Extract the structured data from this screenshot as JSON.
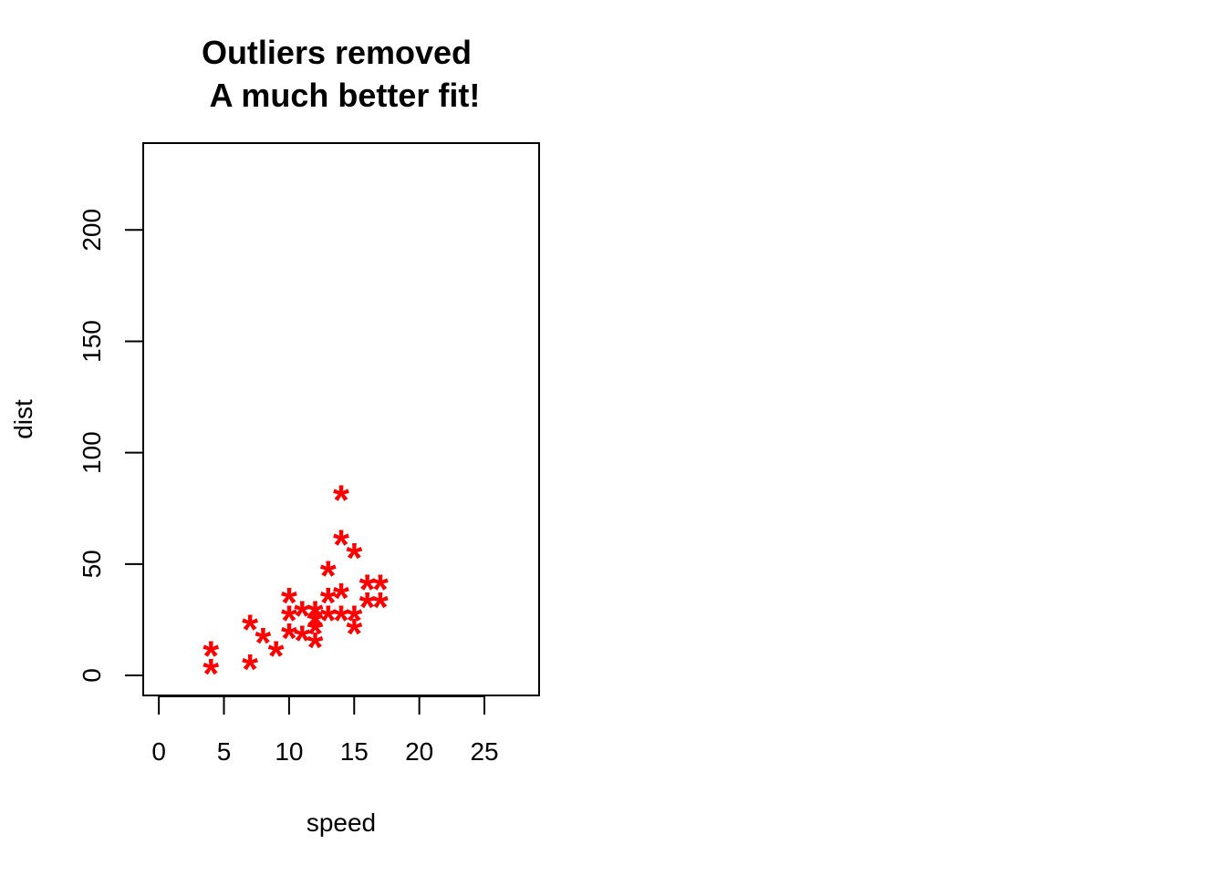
{
  "chart_data": {
    "type": "scatter",
    "title": [
      "Outliers removed",
      "A much better fit!"
    ],
    "xlabel": "speed",
    "ylabel": "dist",
    "xlim": [
      -1.2,
      29.2
    ],
    "ylim": [
      -9,
      239
    ],
    "xticks": [
      0,
      5,
      10,
      15,
      20,
      25
    ],
    "xtick_labels": [
      "0",
      "5",
      "10",
      "15",
      "20",
      "25"
    ],
    "yticks": [
      0,
      50,
      100,
      150,
      200
    ],
    "ytick_labels": [
      "0",
      "50",
      "100",
      "150",
      "200"
    ],
    "grid": false,
    "marker": "*",
    "marker_color": "#ff0000",
    "points": [
      {
        "x": 4,
        "y": 2
      },
      {
        "x": 4,
        "y": 10
      },
      {
        "x": 7,
        "y": 4
      },
      {
        "x": 7,
        "y": 22
      },
      {
        "x": 8,
        "y": 16
      },
      {
        "x": 9,
        "y": 10
      },
      {
        "x": 10,
        "y": 18
      },
      {
        "x": 10,
        "y": 26
      },
      {
        "x": 10,
        "y": 34
      },
      {
        "x": 11,
        "y": 17
      },
      {
        "x": 11,
        "y": 28
      },
      {
        "x": 12,
        "y": 14
      },
      {
        "x": 12,
        "y": 20
      },
      {
        "x": 12,
        "y": 24
      },
      {
        "x": 12,
        "y": 28
      },
      {
        "x": 13,
        "y": 26
      },
      {
        "x": 13,
        "y": 34
      },
      {
        "x": 13,
        "y": 46
      },
      {
        "x": 14,
        "y": 26
      },
      {
        "x": 14,
        "y": 36
      },
      {
        "x": 14,
        "y": 60
      },
      {
        "x": 14,
        "y": 80
      },
      {
        "x": 15,
        "y": 20
      },
      {
        "x": 15,
        "y": 26
      },
      {
        "x": 15,
        "y": 54
      },
      {
        "x": 16,
        "y": 32
      },
      {
        "x": 16,
        "y": 40
      },
      {
        "x": 17,
        "y": 32
      },
      {
        "x": 17,
        "y": 40
      }
    ]
  }
}
